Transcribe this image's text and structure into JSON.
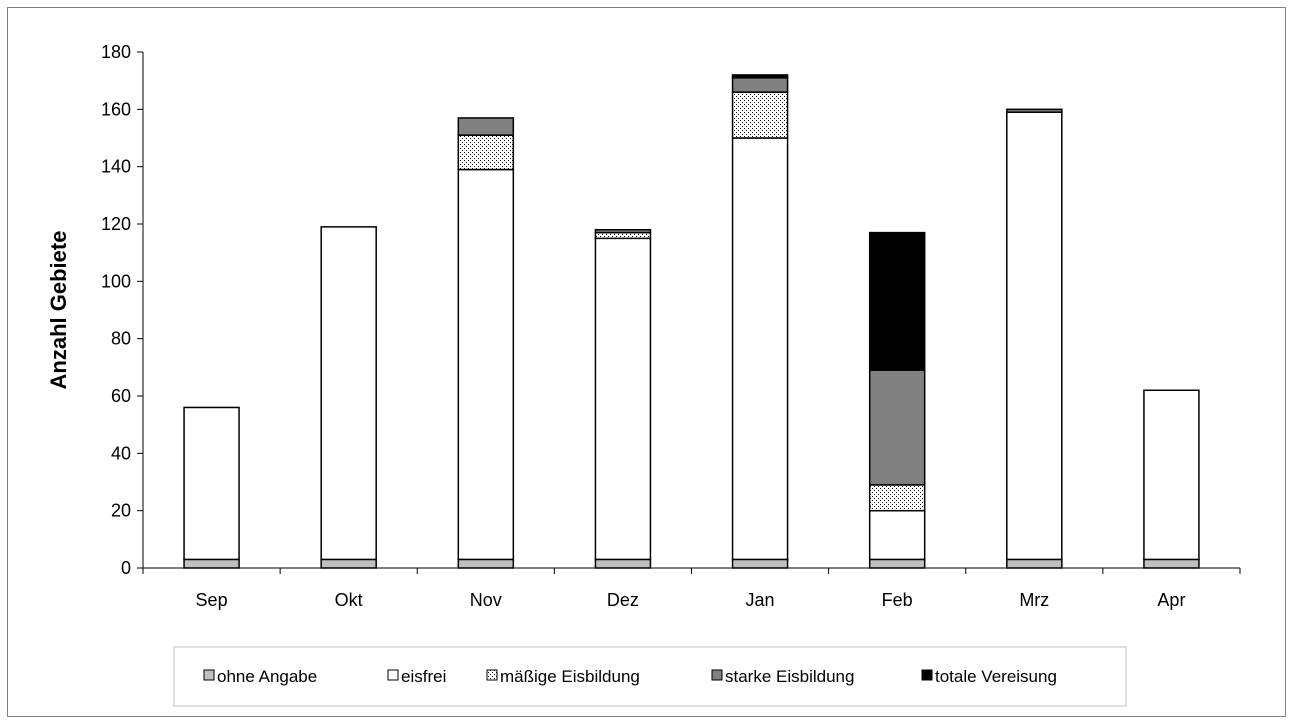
{
  "chart_data": {
    "type": "bar",
    "stacked": true,
    "title": "",
    "xlabel": "",
    "ylabel": "Anzahl Gebiete",
    "ylim": [
      0,
      180
    ],
    "yticks": [
      0,
      20,
      40,
      60,
      80,
      100,
      120,
      140,
      160,
      180
    ],
    "grid": false,
    "legend_position": "bottom",
    "categories": [
      "Sep",
      "Okt",
      "Nov",
      "Dez",
      "Jan",
      "Feb",
      "Mrz",
      "Apr"
    ],
    "series": [
      {
        "name": "ohne Angabe",
        "color": "#c0c0c0",
        "pattern": "solid",
        "values": [
          3,
          3,
          3,
          3,
          3,
          3,
          3,
          3
        ]
      },
      {
        "name": "eisfrei",
        "color": "#ffffff",
        "pattern": "solid",
        "values": [
          53,
          116,
          136,
          112,
          147,
          17,
          156,
          59
        ]
      },
      {
        "name": "mäßige Eisbildung",
        "color": "#ffffff",
        "pattern": "dots",
        "values": [
          0,
          0,
          12,
          2,
          16,
          9,
          0,
          0
        ]
      },
      {
        "name": "starke Eisbildung",
        "color": "#808080",
        "pattern": "solid",
        "values": [
          0,
          0,
          6,
          1,
          5,
          40,
          1,
          0
        ]
      },
      {
        "name": "totale Vereisung",
        "color": "#000000",
        "pattern": "solid",
        "values": [
          0,
          0,
          0,
          0,
          1,
          48,
          0,
          0
        ]
      }
    ]
  }
}
